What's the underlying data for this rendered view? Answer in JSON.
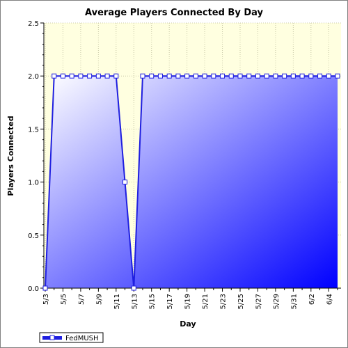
{
  "chart_data": {
    "type": "area",
    "title": "Average Players Connected By Day",
    "xlabel": "Day",
    "ylabel": "Players Connected",
    "ylim": [
      0,
      2.5
    ],
    "yticks": [
      "0.0",
      "0.5",
      "1.0",
      "1.5",
      "2.0",
      "2.5"
    ],
    "x_tick_labels": [
      "5/3",
      "5/5",
      "5/7",
      "5/9",
      "5/11",
      "5/13",
      "5/15",
      "5/17",
      "5/19",
      "5/21",
      "5/23",
      "5/25",
      "5/27",
      "5/29",
      "5/31",
      "6/2",
      "6/4"
    ],
    "grid": true,
    "legend_position": "bottom-left",
    "series": [
      {
        "name": "FedMUSH",
        "color": "#1f1fe0",
        "x": [
          "5/3",
          "5/4",
          "5/5",
          "5/6",
          "5/7",
          "5/8",
          "5/9",
          "5/10",
          "5/11",
          "5/12",
          "5/13",
          "5/14",
          "5/15",
          "5/16",
          "5/17",
          "5/18",
          "5/19",
          "5/20",
          "5/21",
          "5/22",
          "5/23",
          "5/24",
          "5/25",
          "5/26",
          "5/27",
          "5/28",
          "5/29",
          "5/30",
          "5/31",
          "6/1",
          "6/2",
          "6/3",
          "6/4",
          "6/5"
        ],
        "values": [
          0,
          2,
          2,
          2,
          2,
          2,
          2,
          2,
          2,
          1,
          0,
          2,
          2,
          2,
          2,
          2,
          2,
          2,
          2,
          2,
          2,
          2,
          2,
          2,
          2,
          2,
          2,
          2,
          2,
          2,
          2,
          2,
          2,
          2
        ]
      }
    ]
  },
  "colors": {
    "plot_background": "#ffffe0",
    "area_light": "#ffffff",
    "area_dark": "#0000ff",
    "line": "#1f1fe0"
  }
}
